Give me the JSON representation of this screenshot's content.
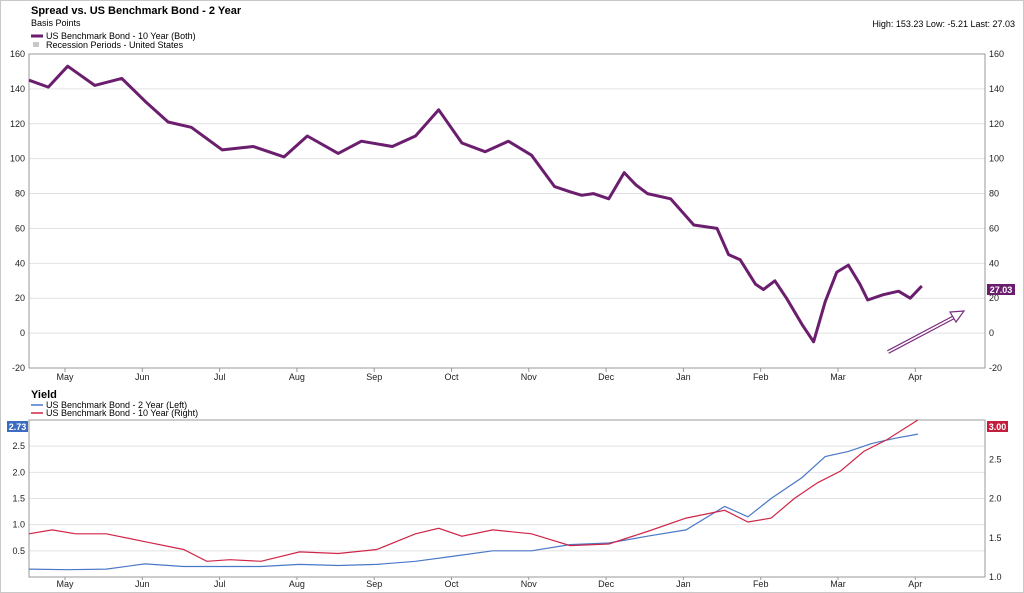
{
  "chart_data": [
    {
      "type": "line",
      "title": "Spread vs. US Benchmark Bond - 2 Year",
      "subtitle": "Basis Points",
      "stats": "High: 153.23 Low: -5.21 Last: 27.03",
      "last_value_label": "27.03",
      "categories": [
        "May",
        "Jun",
        "Jul",
        "Aug",
        "Sep",
        "Oct",
        "Nov",
        "Dec",
        "Jan",
        "Feb",
        "Mar",
        "Apr"
      ],
      "ylim": [
        -20,
        160
      ],
      "yticks": [
        -20,
        0,
        20,
        40,
        60,
        80,
        100,
        120,
        140,
        160
      ],
      "grid": true,
      "legend": [
        {
          "label": "US Benchmark Bond - 10 Year (Both)"
        },
        {
          "label": "Recession Periods - United States"
        }
      ],
      "annotation": "upward arrow",
      "series": [
        {
          "name": "US Benchmark Bond - 10 Year (Both)",
          "color": "#6b1e6e",
          "x": [
            0,
            0.25,
            0.5,
            0.85,
            1.2,
            1.5,
            1.8,
            2.1,
            2.5,
            2.9,
            3.3,
            3.6,
            4.0,
            4.3,
            4.7,
            5.0,
            5.3,
            5.6,
            5.9,
            6.2,
            6.5,
            6.8,
            7.0,
            7.15,
            7.3,
            7.5,
            7.7,
            7.85,
            8.0,
            8.3,
            8.6,
            8.9,
            9.05,
            9.2,
            9.4,
            9.5,
            9.65,
            9.8,
            10.0,
            10.15,
            10.3,
            10.45,
            10.6,
            10.75,
            10.85,
            11.05,
            11.25,
            11.4,
            11.55
          ],
          "values": [
            145,
            141,
            153,
            142,
            146,
            133,
            121,
            118,
            105,
            107,
            101,
            113,
            103,
            110,
            107,
            113,
            128,
            109,
            104,
            110,
            102,
            84,
            81,
            79,
            80,
            77,
            92,
            85,
            80,
            77,
            62,
            60,
            45,
            42,
            28,
            25,
            30,
            20,
            5,
            -5,
            18,
            35,
            39,
            28,
            19,
            22,
            24,
            20,
            27
          ]
        }
      ]
    },
    {
      "type": "line",
      "title": "Yield",
      "categories": [
        "May",
        "Jun",
        "Jul",
        "Aug",
        "Sep",
        "Oct",
        "Nov",
        "Dec",
        "Jan",
        "Feb",
        "Mar",
        "Apr"
      ],
      "left_axis": {
        "ylim": [
          0.0,
          3.0
        ],
        "ticks": [
          0.5,
          1.0,
          1.5,
          2.0,
          2.5
        ]
      },
      "right_axis": {
        "ylim": [
          1.0,
          3.0
        ],
        "ticks": [
          1.0,
          1.5,
          2.0,
          2.5
        ]
      },
      "legend": [
        {
          "label": "US Benchmark Bond - 2 Year (Left)"
        },
        {
          "label": "US Benchmark Bond - 10 Year (Right)"
        }
      ],
      "left_last_label": "2.73",
      "right_last_label": "3.00",
      "series": [
        {
          "name": "US Benchmark Bond - 2 Year (Left)",
          "axis": "left",
          "color": "#4a78c8",
          "x": [
            0,
            0.5,
            1.0,
            1.5,
            2.0,
            2.5,
            3.0,
            3.5,
            4.0,
            4.5,
            5.0,
            5.5,
            6.0,
            6.5,
            7.0,
            7.5,
            8.0,
            8.5,
            9.0,
            9.3,
            9.6,
            10.0,
            10.3,
            10.6,
            10.9,
            11.2,
            11.5
          ],
          "values": [
            0.15,
            0.14,
            0.15,
            0.25,
            0.2,
            0.2,
            0.2,
            0.24,
            0.22,
            0.24,
            0.3,
            0.4,
            0.5,
            0.5,
            0.62,
            0.65,
            0.78,
            0.9,
            1.35,
            1.15,
            1.5,
            1.9,
            2.3,
            2.4,
            2.55,
            2.65,
            2.73
          ]
        },
        {
          "name": "US Benchmark Bond - 10 Year (Right)",
          "axis": "right",
          "color": "#d02548",
          "x": [
            0,
            0.3,
            0.6,
            1.0,
            1.5,
            2.0,
            2.3,
            2.6,
            3.0,
            3.5,
            4.0,
            4.5,
            5.0,
            5.3,
            5.6,
            6.0,
            6.5,
            7.0,
            7.5,
            8.0,
            8.5,
            9.0,
            9.3,
            9.6,
            9.9,
            10.2,
            10.5,
            10.8,
            11.1,
            11.5
          ],
          "values": [
            1.55,
            1.6,
            1.55,
            1.55,
            1.45,
            1.35,
            1.2,
            1.22,
            1.2,
            1.32,
            1.3,
            1.35,
            1.55,
            1.62,
            1.52,
            1.6,
            1.55,
            1.4,
            1.42,
            1.58,
            1.75,
            1.85,
            1.7,
            1.75,
            2.0,
            2.2,
            2.35,
            2.6,
            2.75,
            3.0
          ]
        }
      ]
    }
  ]
}
